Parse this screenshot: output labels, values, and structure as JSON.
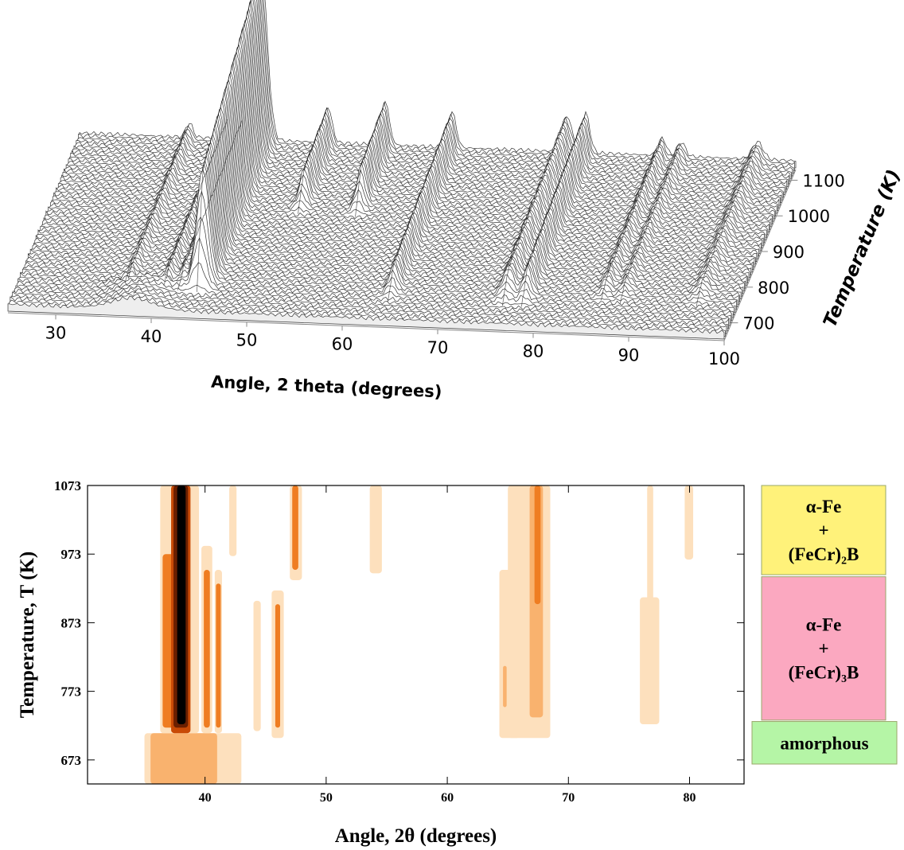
{
  "chart_data": [
    {
      "type": "waterfall",
      "xlabel": "Angle, 2 theta (degrees)",
      "ylabel": "Temperature (K)",
      "xlim": [
        25,
        100
      ],
      "xticks": [
        30,
        40,
        50,
        60,
        70,
        80,
        90,
        100
      ],
      "ylim": [
        650,
        1130
      ],
      "yticks": [
        700,
        800,
        900,
        1000,
        1100
      ],
      "color": "#333333",
      "peaks": [
        {
          "angle": 44,
          "height": 220,
          "width": 0.9,
          "onset": 700
        },
        {
          "angle": 36.5,
          "height": 18,
          "width": 0.5,
          "onset": 700
        },
        {
          "angle": 40.5,
          "height": 25,
          "width": 0.5,
          "onset": 700
        },
        {
          "angle": 42,
          "height": 22,
          "width": 0.5,
          "onset": 700
        },
        {
          "angle": 51,
          "height": 45,
          "width": 0.6,
          "onset": 930
        },
        {
          "angle": 57,
          "height": 55,
          "width": 0.6,
          "onset": 930
        },
        {
          "angle": 64,
          "height": 45,
          "width": 0.6,
          "onset": 700
        },
        {
          "angle": 76,
          "height": 45,
          "width": 0.8,
          "onset": 700
        },
        {
          "angle": 78,
          "height": 50,
          "width": 0.6,
          "onset": 700
        },
        {
          "angle": 86,
          "height": 22,
          "width": 0.6,
          "onset": 720
        },
        {
          "angle": 88,
          "height": 18,
          "width": 0.6,
          "onset": 720
        },
        {
          "angle": 96,
          "height": 22,
          "width": 0.8,
          "onset": 720
        }
      ],
      "hump": {
        "angle": 38,
        "height": 14,
        "width": 3,
        "onset": 650,
        "end": 720
      }
    },
    {
      "type": "contour",
      "xlabel": "Angle, 2θ (degrees)",
      "ylabel": "Temperature, T (K)",
      "xlim": [
        30.3,
        84.5
      ],
      "xticks": [
        40,
        50,
        60,
        70,
        80
      ],
      "ylim": [
        638,
        1073
      ],
      "yticks": [
        673,
        773,
        873,
        973,
        1073
      ],
      "levels": [
        "#fde0bd",
        "#f9b26e",
        "#ef7d22",
        "#c84a06",
        "#6b1f00",
        "#000000"
      ],
      "regions": [
        {
          "x": [
            35,
            43
          ],
          "y": [
            638,
            712
          ],
          "level": 0
        },
        {
          "x": [
            35.5,
            41
          ],
          "y": [
            638,
            712
          ],
          "level": 1
        },
        {
          "x": [
            36.3,
            39.5
          ],
          "y": [
            712,
            1073
          ],
          "level": 0
        },
        {
          "x": [
            36.5,
            37.5
          ],
          "y": [
            720,
            973
          ],
          "level": 2
        },
        {
          "x": [
            37.2,
            38.8
          ],
          "y": [
            712,
            1073
          ],
          "level": 3
        },
        {
          "x": [
            37.4,
            38.6
          ],
          "y": [
            720,
            1073
          ],
          "level": 4
        },
        {
          "x": [
            37.7,
            38.4
          ],
          "y": [
            725,
            1073
          ],
          "level": 5
        },
        {
          "x": [
            39.7,
            40.6
          ],
          "y": [
            712,
            985
          ],
          "level": 0
        },
        {
          "x": [
            39.9,
            40.4
          ],
          "y": [
            720,
            950
          ],
          "level": 2
        },
        {
          "x": [
            40.8,
            41.4
          ],
          "y": [
            712,
            950
          ],
          "level": 0
        },
        {
          "x": [
            40.9,
            41.3
          ],
          "y": [
            720,
            930
          ],
          "level": 2
        },
        {
          "x": [
            42,
            42.6
          ],
          "y": [
            970,
            1073
          ],
          "level": 0
        },
        {
          "x": [
            44,
            44.6
          ],
          "y": [
            715,
            905
          ],
          "level": 0
        },
        {
          "x": [
            45.5,
            46.5
          ],
          "y": [
            705,
            920
          ],
          "level": 0
        },
        {
          "x": [
            45.8,
            46.2
          ],
          "y": [
            720,
            900
          ],
          "level": 2
        },
        {
          "x": [
            47,
            48
          ],
          "y": [
            935,
            1073
          ],
          "level": 0
        },
        {
          "x": [
            47.2,
            47.7
          ],
          "y": [
            950,
            1073
          ],
          "level": 2
        },
        {
          "x": [
            53.6,
            54.6
          ],
          "y": [
            945,
            1073
          ],
          "level": 0
        },
        {
          "x": [
            64.3,
            66
          ],
          "y": [
            705,
            950
          ],
          "level": 0
        },
        {
          "x": [
            65,
            68.5
          ],
          "y": [
            705,
            1073
          ],
          "level": 0
        },
        {
          "x": [
            66.8,
            67.9
          ],
          "y": [
            735,
            1073
          ],
          "level": 1
        },
        {
          "x": [
            67.2,
            67.7
          ],
          "y": [
            900,
            1073
          ],
          "level": 2
        },
        {
          "x": [
            64.6,
            64.9
          ],
          "y": [
            750,
            810
          ],
          "level": 1
        },
        {
          "x": [
            75.9,
            77.5
          ],
          "y": [
            725,
            910
          ],
          "level": 0
        },
        {
          "x": [
            76.5,
            77
          ],
          "y": [
            905,
            1073
          ],
          "level": 0
        },
        {
          "x": [
            79.6,
            80.3
          ],
          "y": [
            965,
            1073
          ],
          "level": 0
        }
      ],
      "phases": [
        {
          "lines": [
            "α-Fe",
            "+",
            "(FeCr)₂B"
          ],
          "color": "#fff27a",
          "range": [
            943,
            1073
          ]
        },
        {
          "lines": [
            "α-Fe",
            "+",
            "(FeCr)₃B"
          ],
          "color": "#fba8c0",
          "range": [
            731,
            940
          ]
        },
        {
          "lines": [
            "amorphous"
          ],
          "color": "#b5f5a6",
          "range": [
            667,
            729
          ]
        }
      ]
    }
  ]
}
